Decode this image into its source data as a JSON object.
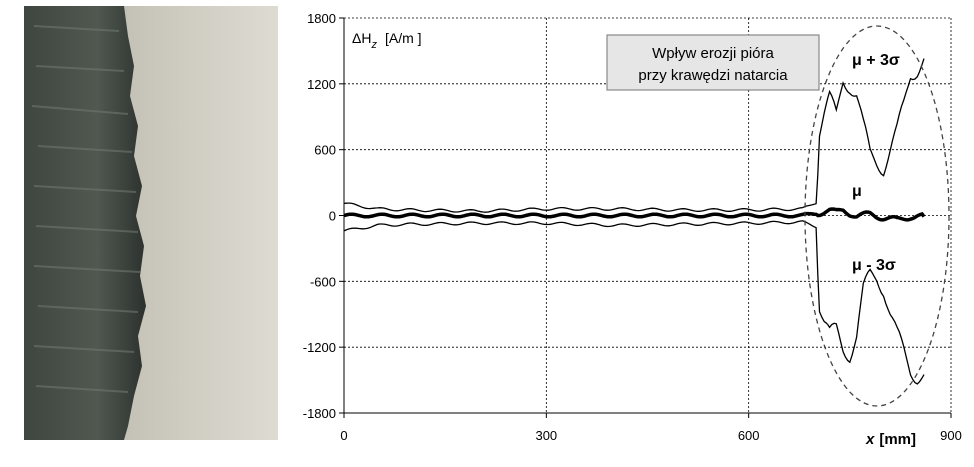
{
  "photo": {
    "description_icon": "eroded-blade-edge-photo"
  },
  "chart_data": {
    "type": "line",
    "ylabel_main": "ΔH",
    "ylabel_sub": "z",
    "ylabel_unit": "[A/m ]",
    "xlabel_main": "x",
    "xlabel_unit": "[mm]",
    "xlim": [
      0,
      900
    ],
    "ylim": [
      -1800,
      1800
    ],
    "x_ticks": [
      "0",
      "300",
      "600",
      "900"
    ],
    "y_ticks": [
      "1800",
      "1200",
      "600",
      "0",
      "-600",
      "-1200",
      "-1800"
    ],
    "grid": true,
    "annotation_box": [
      "Wpływ erozji pióra",
      "przy krawędzi natarcia"
    ],
    "series_labels": {
      "upper": "μ + 3σ",
      "mean": "μ",
      "lower": "μ - 3σ"
    },
    "series": [
      {
        "key": "upper",
        "x": [
          0,
          50,
          100,
          200,
          300,
          400,
          500,
          600,
          680,
          700,
          705,
          712,
          720,
          730,
          740,
          750,
          760,
          770,
          780,
          790,
          800,
          810,
          820,
          830,
          840,
          850,
          860
        ],
        "y": [
          110,
          60,
          50,
          40,
          60,
          60,
          50,
          50,
          60,
          120,
          800,
          950,
          1050,
          900,
          1250,
          1200,
          1100,
          800,
          550,
          500,
          450,
          600,
          750,
          1000,
          1300,
          1350,
          1430
        ]
      },
      {
        "key": "mean",
        "x": [
          0,
          100,
          200,
          300,
          400,
          500,
          600,
          680,
          700,
          720,
          730,
          740,
          750,
          760,
          780,
          800,
          820,
          840,
          860
        ],
        "y": [
          0,
          0,
          0,
          0,
          0,
          0,
          0,
          0,
          20,
          40,
          30,
          50,
          20,
          0,
          10,
          -20,
          -40,
          -10,
          -10
        ]
      },
      {
        "key": "lower",
        "x": [
          0,
          50,
          100,
          200,
          300,
          400,
          500,
          600,
          680,
          700,
          705,
          712,
          720,
          730,
          740,
          750,
          760,
          770,
          780,
          790,
          800,
          810,
          820,
          830,
          840,
          850,
          860
        ],
        "y": [
          -140,
          -90,
          -80,
          -70,
          -70,
          -90,
          -80,
          -70,
          -60,
          -100,
          -800,
          -950,
          -1100,
          -1050,
          -1200,
          -1250,
          -1100,
          -700,
          -550,
          -550,
          -650,
          -900,
          -1100,
          -1250,
          -1400,
          -1450,
          -1450
        ]
      }
    ],
    "ellipse_note": "dashed-ellipse-around-erosion-region"
  }
}
